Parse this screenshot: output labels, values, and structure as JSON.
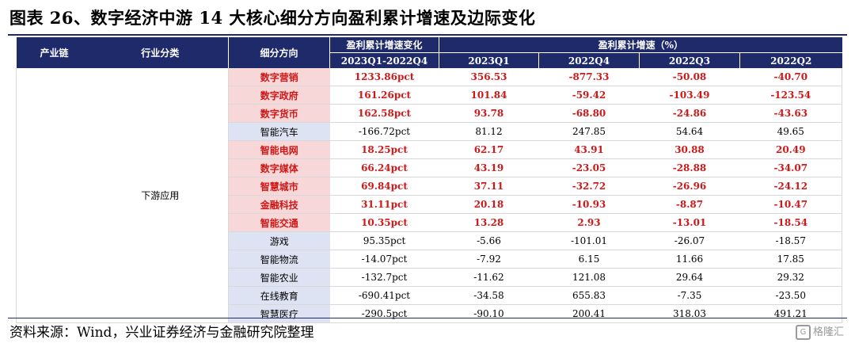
{
  "title": "图表 26、数字经济中游 14 大核心细分方向盈利累计增速及边际变化",
  "header": {
    "chain": "产业链",
    "category": "行业分类",
    "direction": "细分方向",
    "margin_change": "盈利累计增速变化",
    "growth": "盈利累计增速（%）",
    "periods": [
      "2023Q1-2022Q4",
      "2023Q1",
      "2022Q4",
      "2022Q3",
      "2022Q2"
    ]
  },
  "group_label": "下游应用",
  "rows": [
    {
      "name": "数字营销",
      "change": "1233.86pct",
      "q1_2023": "356.53",
      "q4_2022": "-877.33",
      "q3_2022": "-50.08",
      "q2_2022": "-40.70",
      "highlight": true
    },
    {
      "name": "数字政府",
      "change": "161.26pct",
      "q1_2023": "101.84",
      "q4_2022": "-59.42",
      "q3_2022": "-103.49",
      "q2_2022": "-123.54",
      "highlight": true
    },
    {
      "name": "数字货币",
      "change": "162.58pct",
      "q1_2023": "93.78",
      "q4_2022": "-68.80",
      "q3_2022": "-24.86",
      "q2_2022": "-43.63",
      "highlight": true
    },
    {
      "name": "智能汽车",
      "change": "-166.72pct",
      "q1_2023": "81.12",
      "q4_2022": "247.85",
      "q3_2022": "54.64",
      "q2_2022": "49.65",
      "highlight": false
    },
    {
      "name": "智能电网",
      "change": "18.25pct",
      "q1_2023": "62.17",
      "q4_2022": "43.91",
      "q3_2022": "30.88",
      "q2_2022": "20.49",
      "highlight": true
    },
    {
      "name": "数字媒体",
      "change": "66.24pct",
      "q1_2023": "43.19",
      "q4_2022": "-23.05",
      "q3_2022": "-28.88",
      "q2_2022": "-34.07",
      "highlight": true
    },
    {
      "name": "智慧城市",
      "change": "69.84pct",
      "q1_2023": "37.11",
      "q4_2022": "-32.72",
      "q3_2022": "-26.96",
      "q2_2022": "-24.12",
      "highlight": true
    },
    {
      "name": "金融科技",
      "change": "31.11pct",
      "q1_2023": "20.18",
      "q4_2022": "-10.93",
      "q3_2022": "-8.87",
      "q2_2022": "-10.47",
      "highlight": true
    },
    {
      "name": "智能交通",
      "change": "10.35pct",
      "q1_2023": "13.28",
      "q4_2022": "2.93",
      "q3_2022": "-13.01",
      "q2_2022": "-18.54",
      "highlight": true
    },
    {
      "name": "游戏",
      "change": "95.35pct",
      "q1_2023": "-5.66",
      "q4_2022": "-101.01",
      "q3_2022": "-26.07",
      "q2_2022": "-18.57",
      "highlight": false
    },
    {
      "name": "智能物流",
      "change": "-14.07pct",
      "q1_2023": "-7.92",
      "q4_2022": "6.15",
      "q3_2022": "11.66",
      "q2_2022": "17.85",
      "highlight": false
    },
    {
      "name": "智能农业",
      "change": "-132.7pct",
      "q1_2023": "-11.62",
      "q4_2022": "121.08",
      "q3_2022": "29.64",
      "q2_2022": "29.32",
      "highlight": false
    },
    {
      "name": "在线教育",
      "change": "-690.41pct",
      "q1_2023": "-34.58",
      "q4_2022": "655.83",
      "q3_2022": "-7.35",
      "q2_2022": "-23.50",
      "highlight": false
    },
    {
      "name": "智慧医疗",
      "change": "-290.5pct",
      "q1_2023": "-90.10",
      "q4_2022": "200.41",
      "q3_2022": "318.03",
      "q2_2022": "491.21",
      "highlight": false
    }
  ],
  "source": "资料来源：Wind，兴业证券经济与金融研究院整理",
  "watermark": "格隆汇",
  "colors": {
    "header_bg": "#1f2a6b",
    "highlight_text": "#d01818",
    "highlight_bg": "#f7d7d7",
    "normal_bg": "#dde3f2"
  }
}
